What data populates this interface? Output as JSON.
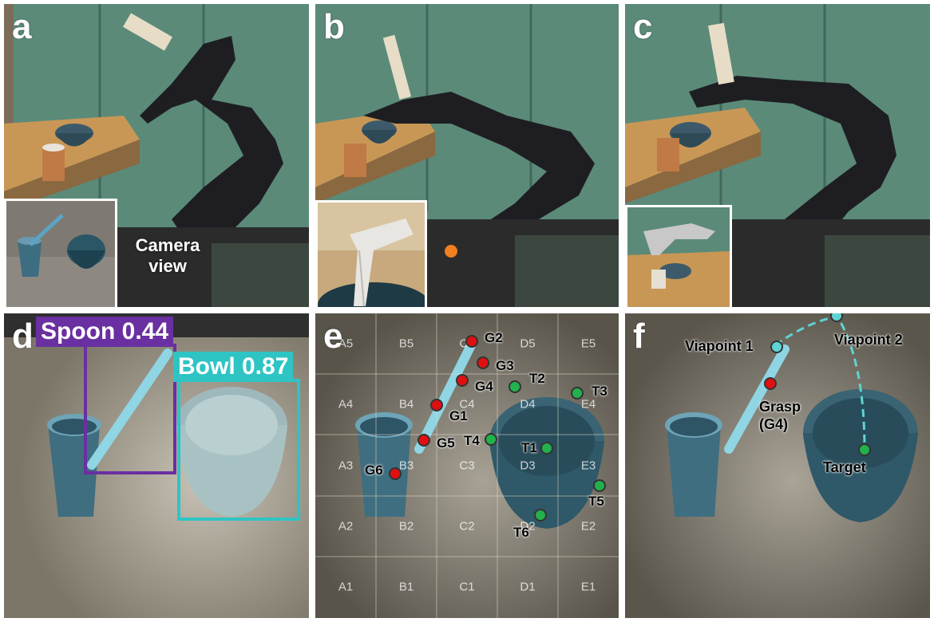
{
  "panels": {
    "a": {
      "label": "a",
      "caption": [
        "Camera",
        "view"
      ]
    },
    "b": {
      "label": "b"
    },
    "c": {
      "label": "c"
    },
    "d": {
      "label": "d",
      "detections": [
        {
          "text": "Spoon 0.44",
          "color": "#6a2fa0"
        },
        {
          "text": "Bowl 0.87",
          "color": "#2ec4c4"
        }
      ]
    },
    "e": {
      "label": "e",
      "grid_cells": [
        "A5",
        "B5",
        "C5",
        "D5",
        "E5",
        "A4",
        "B4",
        "C4",
        "D4",
        "E4",
        "A3",
        "B3",
        "C3",
        "D3",
        "E3",
        "A2",
        "B2",
        "C2",
        "D2",
        "E2",
        "A1",
        "B1",
        "C1",
        "D1",
        "E1"
      ],
      "grasp_points": [
        "G1",
        "G2",
        "G3",
        "G4",
        "G5",
        "G6"
      ],
      "target_points": [
        "T1",
        "T2",
        "T3",
        "T4",
        "T5",
        "T6"
      ],
      "grasp_color": "#e01010",
      "target_color": "#22b14c"
    },
    "f": {
      "label": "f",
      "labels": {
        "viapoint1": "Viapoint 1",
        "viapoint2": "Viapoint 2",
        "grasp": "Grasp",
        "grasp_sub": "(G4)",
        "target": "Target"
      },
      "viapoint_color": "#5fd3d3"
    }
  }
}
